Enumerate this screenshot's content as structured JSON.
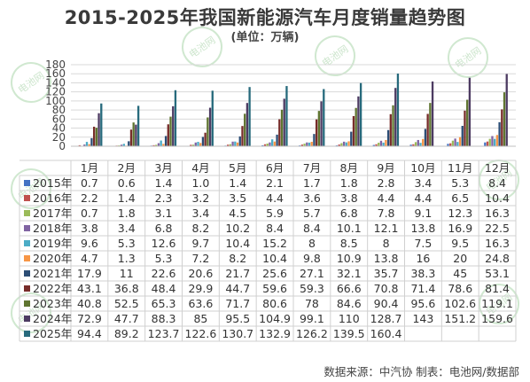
{
  "title": "2015-2025年我国新能源汽车月度销量趋势图",
  "subtitle": "(单位：万辆)",
  "source_note": "数据来源：中汽协 制表：电池网/数据部",
  "watermark_text": "电池网",
  "chart_data": {
    "type": "bar",
    "categories": [
      "1月",
      "2月",
      "3月",
      "4月",
      "5月",
      "6月",
      "7月",
      "8月",
      "9月",
      "10月",
      "11月",
      "12月"
    ],
    "y_ticks": [
      0,
      20,
      40,
      60,
      80,
      100,
      120,
      140,
      160,
      180
    ],
    "ylim": [
      0,
      180
    ],
    "grid": true,
    "series": [
      {
        "name": "2015年",
        "color": "#4472c4",
        "values": [
          "0.7",
          "0.6",
          "1.4",
          "1.0",
          "1.4",
          "2.1",
          "1.7",
          "1.8",
          "2.8",
          "3.4",
          "5.3",
          "8.4"
        ]
      },
      {
        "name": "2016年",
        "color": "#c0504d",
        "values": [
          "2.2",
          "1.4",
          "2.3",
          "3.2",
          "3.5",
          "4.4",
          "3.6",
          "3.8",
          "4.4",
          "4.4",
          "6.5",
          "10.4"
        ]
      },
      {
        "name": "2017年",
        "color": "#9bbb59",
        "values": [
          "0.7",
          "1.8",
          "3.1",
          "3.4",
          "4.5",
          "5.9",
          "5.7",
          "6.8",
          "7.8",
          "9.1",
          "12.3",
          "16.3"
        ]
      },
      {
        "name": "2018年",
        "color": "#8064a2",
        "values": [
          "3.8",
          "3.4",
          "6.8",
          "8.2",
          "10.2",
          "8.4",
          "8.4",
          "10.1",
          "12.1",
          "13.8",
          "16.9",
          "22.5"
        ]
      },
      {
        "name": "2019年",
        "color": "#4bacc6",
        "values": [
          "9.6",
          "5.3",
          "12.6",
          "9.7",
          "10.4",
          "15.2",
          "8",
          "8.5",
          "8",
          "7.5",
          "9.5",
          "16.3"
        ]
      },
      {
        "name": "2020年",
        "color": "#f79646",
        "values": [
          "4.7",
          "1.3",
          "5.3",
          "7.2",
          "8.2",
          "10.4",
          "9.8",
          "10.9",
          "13.8",
          "16",
          "20",
          "24.8"
        ]
      },
      {
        "name": "2021年",
        "color": "#2c4d75",
        "values": [
          "17.9",
          "11",
          "22.6",
          "20.6",
          "21.7",
          "25.6",
          "27.1",
          "32.1",
          "35.7",
          "38.3",
          "45",
          "53.1"
        ]
      },
      {
        "name": "2022年",
        "color": "#772c2a",
        "values": [
          "43.1",
          "36.8",
          "48.4",
          "29.9",
          "44.7",
          "59.6",
          "59.3",
          "66.6",
          "70.8",
          "71.4",
          "78.6",
          "81.4"
        ]
      },
      {
        "name": "2023年",
        "color": "#5f7530",
        "values": [
          "40.8",
          "52.5",
          "65.3",
          "63.6",
          "71.7",
          "80.6",
          "78",
          "84.6",
          "90.4",
          "95.6",
          "102.6",
          "119.1"
        ]
      },
      {
        "name": "2024年",
        "color": "#4d3b62",
        "values": [
          "72.9",
          "47.7",
          "88.3",
          "85",
          "95.5",
          "104.9",
          "99.1",
          "110",
          "128.7",
          "143",
          "151.2",
          "159.6"
        ]
      },
      {
        "name": "2025年",
        "color": "#276a7c",
        "values": [
          "94.4",
          "89.2",
          "123.7",
          "122.6",
          "130.7",
          "132.9",
          "126.2",
          "139.5",
          "160.4",
          "",
          "",
          ""
        ]
      }
    ]
  }
}
